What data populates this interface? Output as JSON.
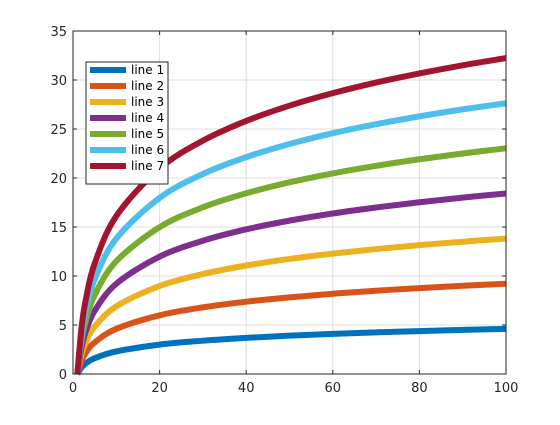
{
  "chart_data": {
    "type": "line",
    "title": "",
    "xlabel": "",
    "ylabel": "",
    "xlim": [
      0,
      100
    ],
    "ylim": [
      0,
      35
    ],
    "xticks": [
      0,
      20,
      40,
      60,
      80,
      100
    ],
    "yticks": [
      0,
      5,
      10,
      15,
      20,
      25,
      30,
      35
    ],
    "xtick_labels": [
      "0",
      "20",
      "40",
      "60",
      "80",
      "100"
    ],
    "ytick_labels": [
      "0",
      "5",
      "10",
      "15",
      "20",
      "25",
      "30",
      "35"
    ],
    "grid": true,
    "legend_position": "top-left",
    "x": [
      1,
      2,
      3,
      5,
      10,
      20,
      30,
      40,
      50,
      60,
      70,
      80,
      90,
      100
    ],
    "series": [
      {
        "name": "line 1",
        "color": "#0072BD",
        "values": [
          0,
          0.69,
          1.1,
          1.61,
          2.3,
          3.0,
          3.4,
          3.69,
          3.91,
          4.09,
          4.25,
          4.38,
          4.5,
          4.61
        ]
      },
      {
        "name": "line 2",
        "color": "#D95319",
        "values": [
          0,
          1.39,
          2.2,
          3.22,
          4.61,
          5.99,
          6.8,
          7.38,
          7.82,
          8.19,
          8.5,
          8.76,
          9.0,
          9.21
        ]
      },
      {
        "name": "line 3",
        "color": "#EDB120",
        "values": [
          0,
          2.08,
          3.3,
          4.83,
          6.91,
          8.99,
          10.2,
          11.07,
          11.74,
          12.28,
          12.75,
          13.15,
          13.5,
          13.82
        ]
      },
      {
        "name": "line 4",
        "color": "#7E2F8E",
        "values": [
          0,
          2.77,
          4.39,
          6.44,
          9.21,
          11.98,
          13.6,
          14.76,
          15.65,
          16.38,
          16.99,
          17.53,
          18.0,
          18.42
        ]
      },
      {
        "name": "line 5",
        "color": "#77AC30",
        "values": [
          0,
          3.47,
          5.49,
          8.05,
          11.51,
          14.98,
          17.01,
          18.44,
          19.56,
          20.47,
          21.24,
          21.91,
          22.5,
          23.03
        ]
      },
      {
        "name": "line 6",
        "color": "#4DBEEE",
        "values": [
          0,
          4.16,
          6.59,
          9.66,
          13.82,
          17.97,
          20.41,
          22.13,
          23.47,
          24.57,
          25.49,
          26.29,
          27.0,
          27.63
        ]
      },
      {
        "name": "line 7",
        "color": "#A2142F",
        "values": [
          0,
          4.85,
          7.69,
          11.27,
          16.12,
          20.97,
          23.81,
          25.82,
          27.38,
          28.66,
          29.74,
          30.67,
          31.5,
          32.24
        ]
      }
    ]
  }
}
